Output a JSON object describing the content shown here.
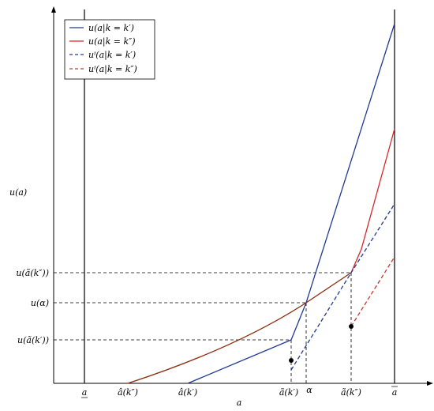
{
  "axes": {
    "x_label": "a",
    "y_label": "u(a)"
  },
  "x_ticks": {
    "a_lower": "a",
    "a_hat_k2": "â(k″)",
    "a_hat_k1": "â(k′)",
    "a_tilde_k1": "ã(k′)",
    "alpha": "α",
    "a_tilde_k2": "ã(k″)",
    "a_upper": "a"
  },
  "y_ticks": {
    "u_tilde_k2": "u(ã(k″))",
    "u_alpha": "u(α)",
    "u_tilde_k1": "u(ã(k′))"
  },
  "legend": [
    {
      "label": "u(a|k = k′)",
      "color": "#1f3a93",
      "dash": false
    },
    {
      "label": "u(a|k = k″)",
      "color": "#d62728",
      "dash": false
    },
    {
      "label": "uⁱ(a|k = k′)",
      "color": "#1f3a93",
      "dash": true
    },
    {
      "label": "uⁱ(a|k = k″)",
      "color": "#c0392b",
      "dash": true
    }
  ],
  "colors": {
    "blue": "#1f3a93",
    "red": "#d62728",
    "brown": "#8b2d0e",
    "orange_dash": "#c0392b",
    "axis": "#000000"
  }
}
